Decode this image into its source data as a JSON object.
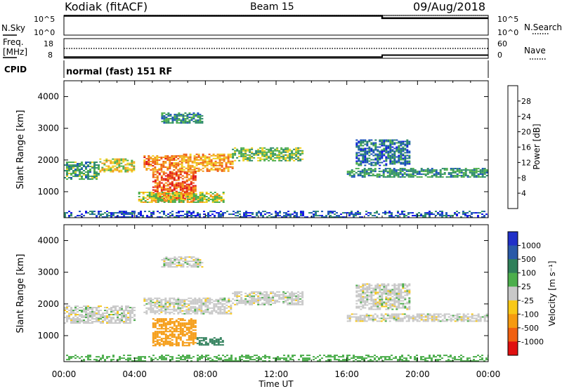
{
  "header": {
    "station": "Kodiak (fitACF)",
    "beam": "Beam 15",
    "date": "09/Aug/2018"
  },
  "noise_panel": {
    "left_label": "N.Sky",
    "right_label": "N.Search",
    "left_ticks": [
      "10^5",
      "10^0"
    ],
    "right_ticks": [
      "10^5",
      "10^0"
    ]
  },
  "freq_panel": {
    "left_label": "Freq.",
    "left_units": "[MHz]",
    "left_ticks": [
      "18",
      "8"
    ],
    "right_label": "Nave",
    "right_ticks": [
      "60",
      "0"
    ]
  },
  "cpid_panel": {
    "label": "CPID",
    "value": "normal (fast) 151 RF"
  },
  "time_axis": {
    "title": "Time UT",
    "ticks": [
      "00:00",
      "04:00",
      "08:00",
      "12:00",
      "16:00",
      "20:00",
      "00:00"
    ]
  },
  "range_axis": {
    "title": "Slant Range [km]",
    "ticks": [
      "1000",
      "2000",
      "3000",
      "4000"
    ]
  },
  "power_bar": {
    "title": "Power [dB]",
    "ticks": [
      "4",
      "8",
      "12",
      "16",
      "20",
      "24",
      "28"
    ],
    "colors": [
      "#1010e8",
      "#1a52b8",
      "#2c8a6a",
      "#4cae4c",
      "#f0d020",
      "#f39a16",
      "#ee5a10",
      "#e01010"
    ]
  },
  "velocity_bar": {
    "title": "Velocity [m s⁻¹]",
    "ticks": [
      "1000",
      "500",
      "100",
      "25",
      "-25",
      "-100",
      "-500",
      "-1000"
    ],
    "colors": [
      "#2030c8",
      "#2a5aa8",
      "#2f7f5a",
      "#4cae4c",
      "#c8c8c8",
      "#f8c818",
      "#f59a10",
      "#f06010",
      "#e01010"
    ]
  },
  "chart_data": [
    {
      "type": "heatmap",
      "title": "Power [dB]",
      "xlabel": "Time UT",
      "ylabel": "Slant Range [km]",
      "xlim": [
        "00:00",
        "24:00"
      ],
      "ylim": [
        180,
        4500
      ],
      "clim": [
        0,
        30
      ],
      "features": [
        {
          "t_start": 0.0,
          "t_end": 2.0,
          "range_start": 1400,
          "range_end": 1950,
          "power": 12
        },
        {
          "t_start": 2.0,
          "t_end": 4.0,
          "range_start": 1650,
          "range_end": 2050,
          "power": 18
        },
        {
          "t_start": 4.5,
          "t_end": 6.5,
          "range_start": 1700,
          "range_end": 2150,
          "power": 24
        },
        {
          "t_start": 6.5,
          "t_end": 9.5,
          "range_start": 1650,
          "range_end": 2200,
          "power": 21
        },
        {
          "t_start": 9.5,
          "t_end": 13.5,
          "range_start": 2000,
          "range_end": 2400,
          "power": 14
        },
        {
          "t_start": 5.0,
          "t_end": 7.5,
          "range_start": 700,
          "range_end": 1650,
          "power": 27
        },
        {
          "t_start": 4.2,
          "t_end": 9.0,
          "range_start": 650,
          "range_end": 1000,
          "power": 17
        },
        {
          "t_start": 5.5,
          "t_end": 7.8,
          "range_start": 3150,
          "range_end": 3500,
          "power": 10
        },
        {
          "t_start": 16.0,
          "t_end": 24.0,
          "range_start": 1450,
          "range_end": 1750,
          "power": 11
        },
        {
          "t_start": 16.5,
          "t_end": 19.5,
          "range_start": 1850,
          "range_end": 2650,
          "power": 8
        },
        {
          "t_start": 0.0,
          "t_end": 24.0,
          "range_start": 200,
          "range_end": 400,
          "power": 6
        }
      ]
    },
    {
      "type": "heatmap",
      "title": "Velocity [m s⁻¹]",
      "xlabel": "Time UT",
      "ylabel": "Slant Range [km]",
      "xlim": [
        "00:00",
        "24:00"
      ],
      "ylim": [
        180,
        4500
      ],
      "clim": [
        -1000,
        1000
      ],
      "features": [
        {
          "t_start": 0.0,
          "t_end": 4.0,
          "range_start": 1400,
          "range_end": 1950,
          "velocity": 0
        },
        {
          "t_start": 4.5,
          "t_end": 9.5,
          "range_start": 1700,
          "range_end": 2200,
          "velocity": 0
        },
        {
          "t_start": 9.5,
          "t_end": 13.5,
          "range_start": 2000,
          "range_end": 2400,
          "velocity": 0
        },
        {
          "t_start": 5.0,
          "t_end": 7.5,
          "range_start": 700,
          "range_end": 1550,
          "velocity": -400
        },
        {
          "t_start": 7.5,
          "t_end": 9.0,
          "range_start": 700,
          "range_end": 950,
          "velocity": 150
        },
        {
          "t_start": 5.5,
          "t_end": 7.8,
          "range_start": 3150,
          "range_end": 3500,
          "velocity": 0
        },
        {
          "t_start": 16.0,
          "t_end": 24.0,
          "range_start": 1450,
          "range_end": 1700,
          "velocity": 0
        },
        {
          "t_start": 16.5,
          "t_end": 19.5,
          "range_start": 1850,
          "range_end": 2650,
          "velocity": 0
        },
        {
          "t_start": 0.0,
          "t_end": 24.0,
          "range_start": 200,
          "range_end": 400,
          "velocity": 60
        }
      ]
    },
    {
      "type": "line",
      "title": "N.Sky / N.Search",
      "xlim": [
        "00:00",
        "24:00"
      ],
      "ylim": [
        "10^0",
        "10^5"
      ],
      "series": [
        {
          "name": "N.Sky",
          "x": [
            0,
            18,
            18,
            24
          ],
          "values": [
            80000,
            80000,
            20000,
            20000
          ]
        },
        {
          "name": "N.Search",
          "x": [
            0,
            24
          ],
          "values": [
            100000,
            100000
          ]
        }
      ]
    },
    {
      "type": "line",
      "title": "Freq. / Nave",
      "xlim": [
        "00:00",
        "24:00"
      ],
      "series": [
        {
          "name": "Freq.",
          "x": [
            0,
            18,
            18,
            24
          ],
          "values": [
            8.6,
            8.6,
            9.6,
            9.6
          ]
        },
        {
          "name": "Nave",
          "x": [
            0,
            24
          ],
          "values": [
            30,
            30
          ]
        }
      ]
    }
  ]
}
